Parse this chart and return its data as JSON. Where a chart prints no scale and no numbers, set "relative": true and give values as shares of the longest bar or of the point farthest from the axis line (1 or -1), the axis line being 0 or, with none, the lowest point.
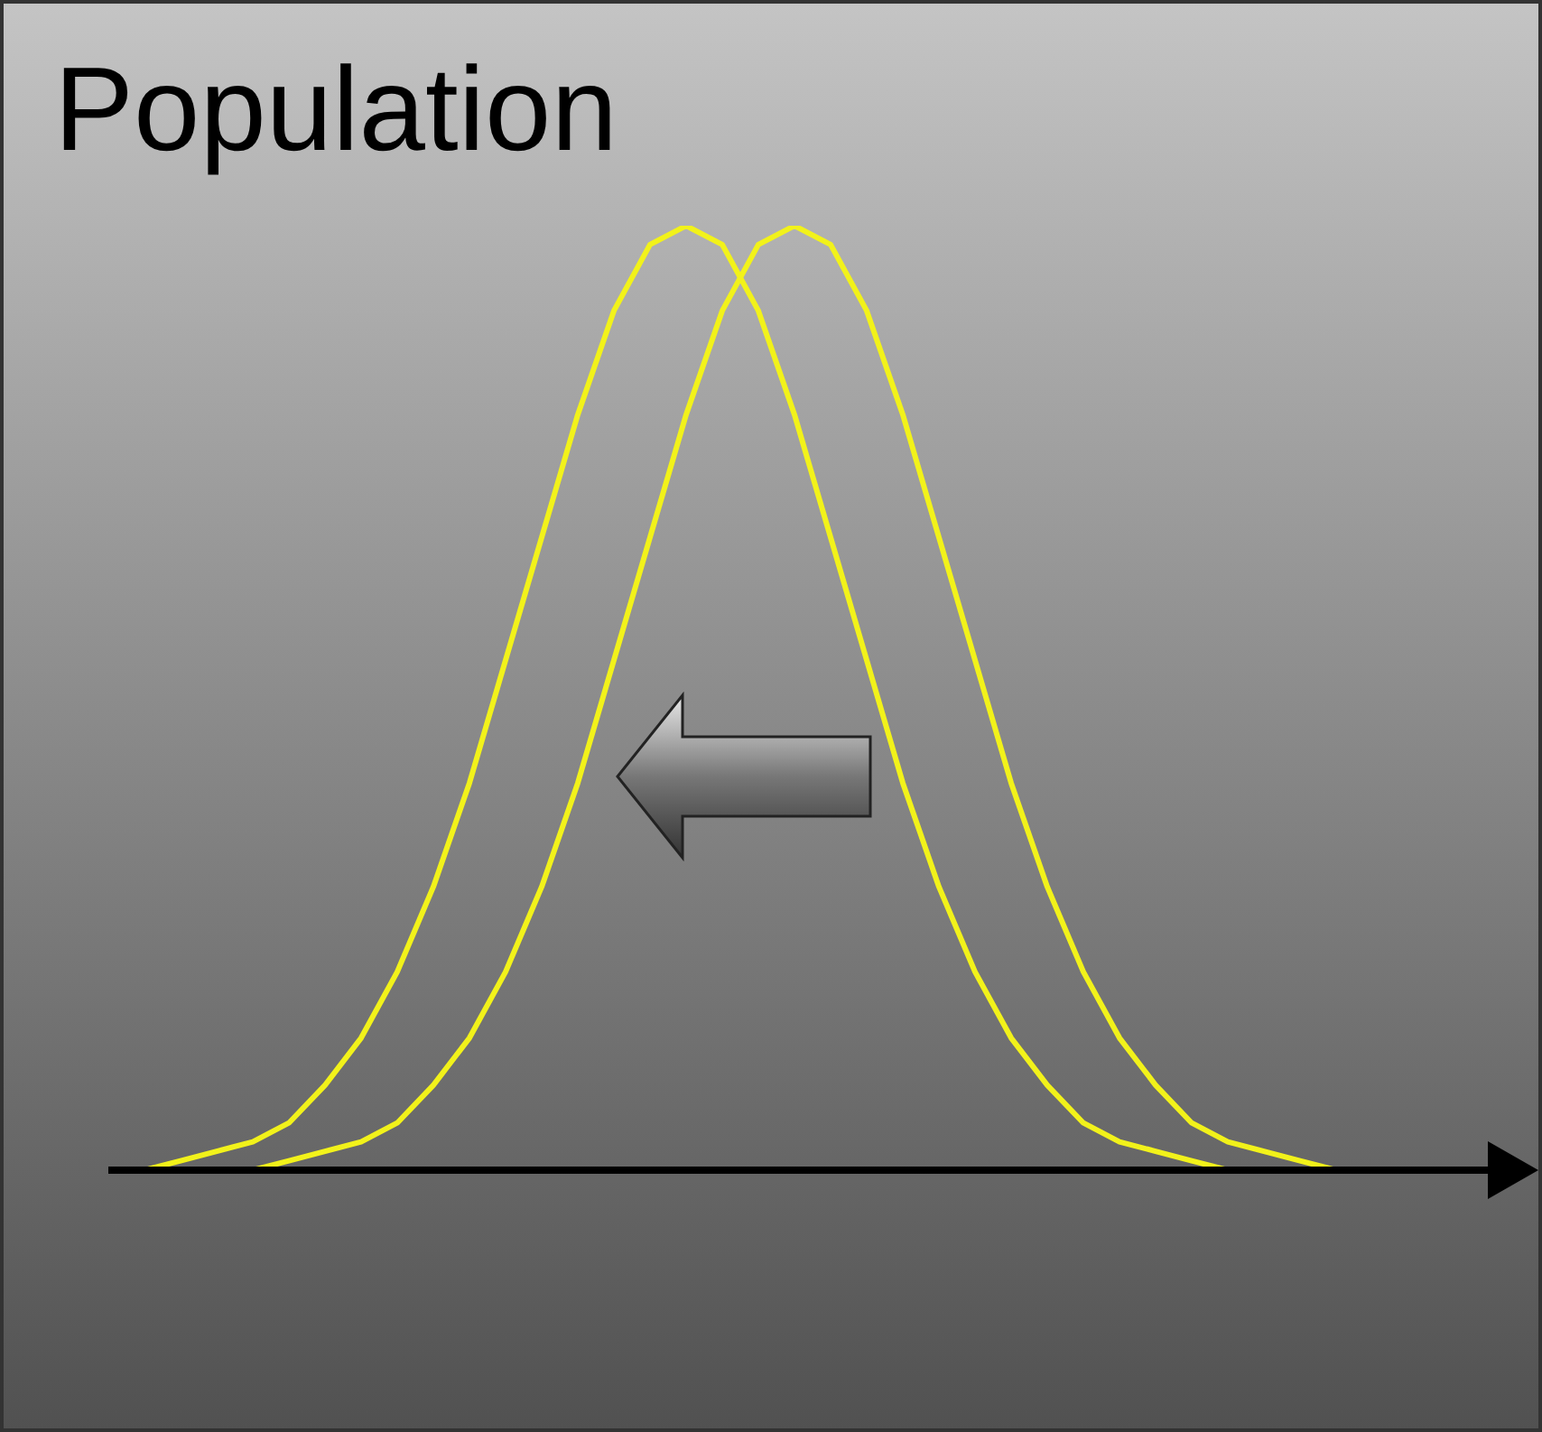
{
  "chart_data": {
    "type": "line",
    "title": "Population",
    "relative": true,
    "categories": [
      null,
      null,
      null,
      null,
      null,
      null,
      null,
      null,
      null,
      null,
      null,
      null,
      null,
      null,
      null,
      null,
      null,
      null,
      null,
      null,
      null,
      null,
      null,
      null,
      null,
      null,
      null,
      null,
      null,
      null,
      null,
      null,
      null,
      null,
      null,
      null,
      null,
      null,
      null,
      null
    ],
    "series": [
      {
        "color": "#f2f21a",
        "values": [
          0,
          0,
          0.01,
          0.02,
          0.03,
          0.05,
          0.09,
          0.14,
          0.21,
          0.3,
          0.41,
          0.54,
          0.67,
          0.8,
          0.91,
          0.98,
          1,
          0.98,
          0.91,
          0.8,
          0.67,
          0.54,
          0.41,
          0.3,
          0.21,
          0.14,
          0.09,
          0.05,
          0.03,
          0.02,
          0.01,
          0,
          0,
          null,
          null,
          null,
          null,
          null,
          null,
          null
        ]
      },
      {
        "color": "#f2f21a",
        "values": [
          null,
          null,
          null,
          0,
          0,
          0.01,
          0.02,
          0.03,
          0.05,
          0.09,
          0.14,
          0.21,
          0.3,
          0.41,
          0.54,
          0.67,
          0.8,
          0.91,
          0.98,
          1,
          0.98,
          0.91,
          0.8,
          0.67,
          0.54,
          0.41,
          0.3,
          0.21,
          0.14,
          0.09,
          0.05,
          0.03,
          0.02,
          0.01,
          0,
          0,
          null,
          null,
          null,
          null
        ]
      }
    ]
  }
}
